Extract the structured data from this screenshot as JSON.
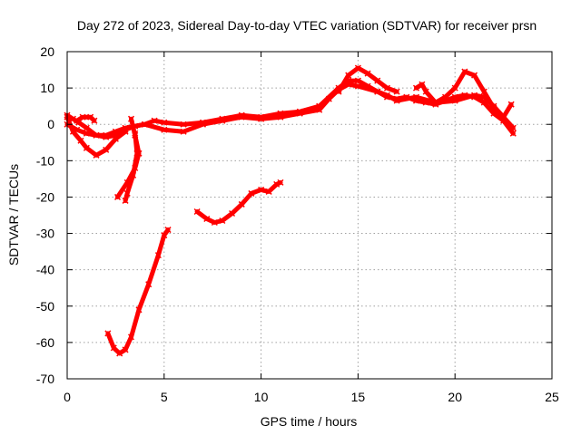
{
  "chart_data": {
    "type": "scatter",
    "title": "Day 272 of 2023, Sidereal Day-to-day VTEC variation (SDTVAR) for receiver prsn",
    "xlabel": "GPS time / hours",
    "ylabel": "SDTVAR / TECUs",
    "xlim": [
      0,
      25
    ],
    "ylim": [
      -70,
      20
    ],
    "xticks": [
      0,
      5,
      10,
      15,
      20,
      25
    ],
    "yticks": [
      -70,
      -60,
      -50,
      -40,
      -30,
      -20,
      -10,
      0,
      10,
      20
    ],
    "xtick_labels": [
      "0",
      "5",
      "10",
      "15",
      "20",
      "25"
    ],
    "ytick_labels": [
      "-70",
      "-60",
      "-50",
      "-40",
      "-30",
      "-20",
      "-10",
      "0",
      "10",
      "20"
    ],
    "grid": true,
    "legend": "none",
    "color": "#ff0000",
    "series": [
      {
        "name": "arc-main-upper",
        "points": [
          [
            0.0,
            2.5
          ],
          [
            0.3,
            1.5
          ],
          [
            0.6,
            0.5
          ],
          [
            1.0,
            -1.0
          ],
          [
            1.5,
            -3.0
          ],
          [
            2.0,
            -3.5
          ],
          [
            2.5,
            -3.0
          ],
          [
            3.0,
            -1.5
          ],
          [
            3.5,
            -0.5
          ],
          [
            4.0,
            0.0
          ],
          [
            4.5,
            1.0
          ],
          [
            5.0,
            0.5
          ],
          [
            6.0,
            0.0
          ],
          [
            7.0,
            0.5
          ],
          [
            8.0,
            1.5
          ],
          [
            9.0,
            2.5
          ],
          [
            10.0,
            2.0
          ],
          [
            11.0,
            3.0
          ],
          [
            12.0,
            3.5
          ],
          [
            13.0,
            5.0
          ],
          [
            14.0,
            10.0
          ],
          [
            14.5,
            12.0
          ],
          [
            15.0,
            12.0
          ],
          [
            15.5,
            10.5
          ],
          [
            16.0,
            9.0
          ],
          [
            16.5,
            7.5
          ],
          [
            17.0,
            7.0
          ],
          [
            17.5,
            7.5
          ],
          [
            18.0,
            6.5
          ],
          [
            18.5,
            6.0
          ],
          [
            19.0,
            5.5
          ],
          [
            19.5,
            6.5
          ],
          [
            20.0,
            7.5
          ],
          [
            20.5,
            8.0
          ],
          [
            21.0,
            7.5
          ],
          [
            21.5,
            6.0
          ],
          [
            22.0,
            3.0
          ],
          [
            22.5,
            1.0
          ],
          [
            23.0,
            -2.5
          ]
        ]
      },
      {
        "name": "arc-main-lower",
        "points": [
          [
            0.0,
            0.0
          ],
          [
            0.5,
            -1.5
          ],
          [
            1.0,
            -2.5
          ],
          [
            1.5,
            -3.0
          ],
          [
            2.0,
            -3.0
          ],
          [
            2.5,
            -2.0
          ],
          [
            3.0,
            -1.0
          ],
          [
            4.0,
            0.0
          ],
          [
            5.0,
            -1.5
          ],
          [
            6.0,
            -2.0
          ],
          [
            7.0,
            0.0
          ],
          [
            8.0,
            1.0
          ],
          [
            9.0,
            2.0
          ],
          [
            10.0,
            1.5
          ],
          [
            11.0,
            2.0
          ],
          [
            12.0,
            3.0
          ],
          [
            13.0,
            4.0
          ],
          [
            13.5,
            7.0
          ],
          [
            14.0,
            9.5
          ],
          [
            14.5,
            11.0
          ],
          [
            15.0,
            10.5
          ],
          [
            16.0,
            9.0
          ],
          [
            16.5,
            8.0
          ],
          [
            17.0,
            6.5
          ],
          [
            18.0,
            7.5
          ],
          [
            19.0,
            6.0
          ],
          [
            20.0,
            6.5
          ],
          [
            21.0,
            8.0
          ],
          [
            21.5,
            7.5
          ],
          [
            22.0,
            5.0
          ],
          [
            22.5,
            2.0
          ],
          [
            23.0,
            -1.0
          ]
        ]
      },
      {
        "name": "arc-peak-15",
        "points": [
          [
            14.0,
            9.0
          ],
          [
            14.5,
            13.5
          ],
          [
            15.0,
            15.5
          ],
          [
            15.5,
            14.0
          ],
          [
            16.0,
            12.0
          ],
          [
            16.5,
            10.0
          ],
          [
            17.0,
            9.0
          ]
        ]
      },
      {
        "name": "arc-peak-20",
        "points": [
          [
            18.0,
            10.0
          ],
          [
            18.3,
            11.0
          ],
          [
            18.5,
            9.0
          ],
          [
            19.0,
            6.0
          ],
          [
            19.5,
            7.5
          ],
          [
            20.0,
            10.0
          ],
          [
            20.5,
            14.5
          ],
          [
            21.0,
            13.5
          ],
          [
            21.5,
            9.0
          ],
          [
            22.0,
            4.5
          ],
          [
            22.5,
            2.0
          ],
          [
            22.9,
            5.5
          ]
        ]
      },
      {
        "name": "arc-early-dip",
        "points": [
          [
            0.0,
            2.0
          ],
          [
            0.3,
            -2.0
          ],
          [
            0.7,
            -4.5
          ],
          [
            1.0,
            -6.5
          ],
          [
            1.5,
            -8.5
          ],
          [
            2.0,
            -7.0
          ],
          [
            2.5,
            -4.0
          ],
          [
            3.0,
            -2.0
          ]
        ]
      },
      {
        "name": "arc-early-small",
        "points": [
          [
            0.5,
            1.0
          ],
          [
            0.8,
            2.0
          ],
          [
            1.2,
            2.0
          ],
          [
            1.4,
            1.0
          ]
        ]
      },
      {
        "name": "arc-3h-descent-a",
        "points": [
          [
            3.3,
            1.5
          ],
          [
            3.5,
            -3.0
          ],
          [
            3.7,
            -8.0
          ],
          [
            3.5,
            -12.0
          ],
          [
            3.1,
            -16.0
          ],
          [
            2.6,
            -20.0
          ]
        ]
      },
      {
        "name": "arc-3h-descent-b",
        "points": [
          [
            3.5,
            -2.5
          ],
          [
            3.6,
            -8.0
          ],
          [
            3.4,
            -14.0
          ],
          [
            3.1,
            -19.0
          ],
          [
            3.0,
            -21.0
          ]
        ]
      },
      {
        "name": "arc-deep",
        "points": [
          [
            2.1,
            -57.5
          ],
          [
            2.4,
            -61.5
          ],
          [
            2.7,
            -63.0
          ],
          [
            3.0,
            -62.0
          ],
          [
            3.3,
            -58.5
          ],
          [
            3.7,
            -51.0
          ],
          [
            4.2,
            -44.0
          ],
          [
            4.7,
            -36.0
          ],
          [
            5.0,
            -30.5
          ],
          [
            5.2,
            -29.0
          ]
        ]
      },
      {
        "name": "arc-mid",
        "points": [
          [
            6.7,
            -24.0
          ],
          [
            7.2,
            -26.0
          ],
          [
            7.6,
            -27.0
          ],
          [
            8.0,
            -26.5
          ],
          [
            8.5,
            -24.5
          ],
          [
            9.0,
            -22.0
          ],
          [
            9.5,
            -19.0
          ],
          [
            10.0,
            -18.0
          ],
          [
            10.4,
            -18.5
          ],
          [
            10.8,
            -16.5
          ],
          [
            11.0,
            -16.0
          ]
        ]
      }
    ]
  }
}
